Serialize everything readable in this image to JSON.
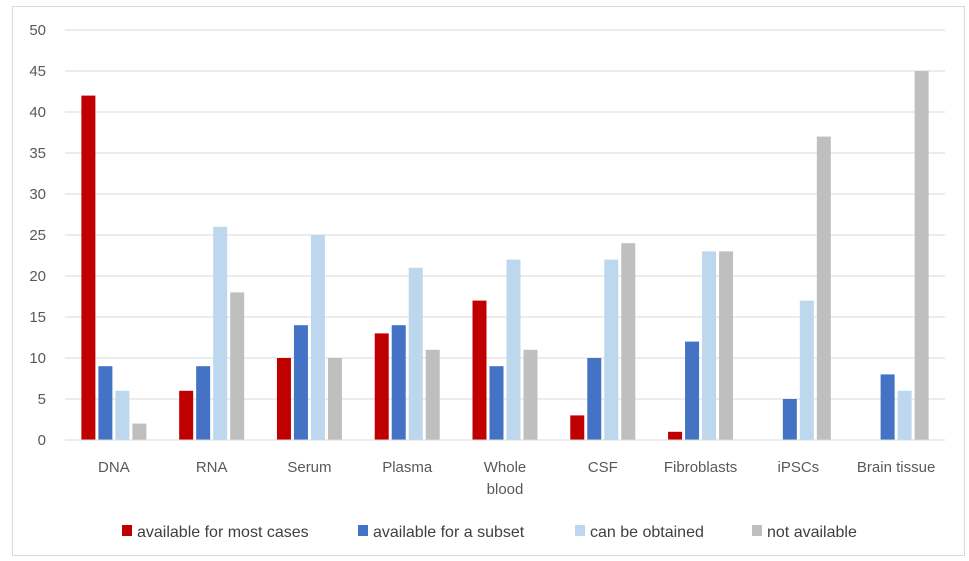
{
  "chart_data": {
    "type": "bar",
    "title": "",
    "xlabel": "",
    "ylabel": "",
    "ylim": [
      0,
      50
    ],
    "yticks": [
      0,
      5,
      10,
      15,
      20,
      25,
      30,
      35,
      40,
      45,
      50
    ],
    "grid": true,
    "legend_position": "bottom",
    "categories": [
      "DNA",
      "RNA",
      "Serum",
      "Plasma",
      "Whole blood",
      "CSF",
      "Fibroblasts",
      "iPSCs",
      "Brain tissue"
    ],
    "category_lines": [
      [
        "DNA"
      ],
      [
        "RNA"
      ],
      [
        "Serum"
      ],
      [
        "Plasma"
      ],
      [
        "Whole",
        "blood"
      ],
      [
        "CSF"
      ],
      [
        "Fibroblasts"
      ],
      [
        "iPSCs"
      ],
      [
        "Brain tissue"
      ]
    ],
    "series": [
      {
        "name": "available for most cases",
        "color": "#c00000",
        "values": [
          42,
          6,
          10,
          13,
          17,
          3,
          1,
          0,
          0
        ]
      },
      {
        "name": "available for a subset",
        "color": "#4472c4",
        "values": [
          9,
          9,
          14,
          14,
          9,
          10,
          12,
          5,
          8
        ]
      },
      {
        "name": "can be obtained",
        "color": "#bdd7ee",
        "values": [
          6,
          26,
          25,
          21,
          22,
          22,
          23,
          17,
          6
        ]
      },
      {
        "name": "not available",
        "color": "#bfbfbf",
        "values": [
          2,
          18,
          10,
          11,
          11,
          24,
          23,
          37,
          45
        ]
      }
    ]
  }
}
